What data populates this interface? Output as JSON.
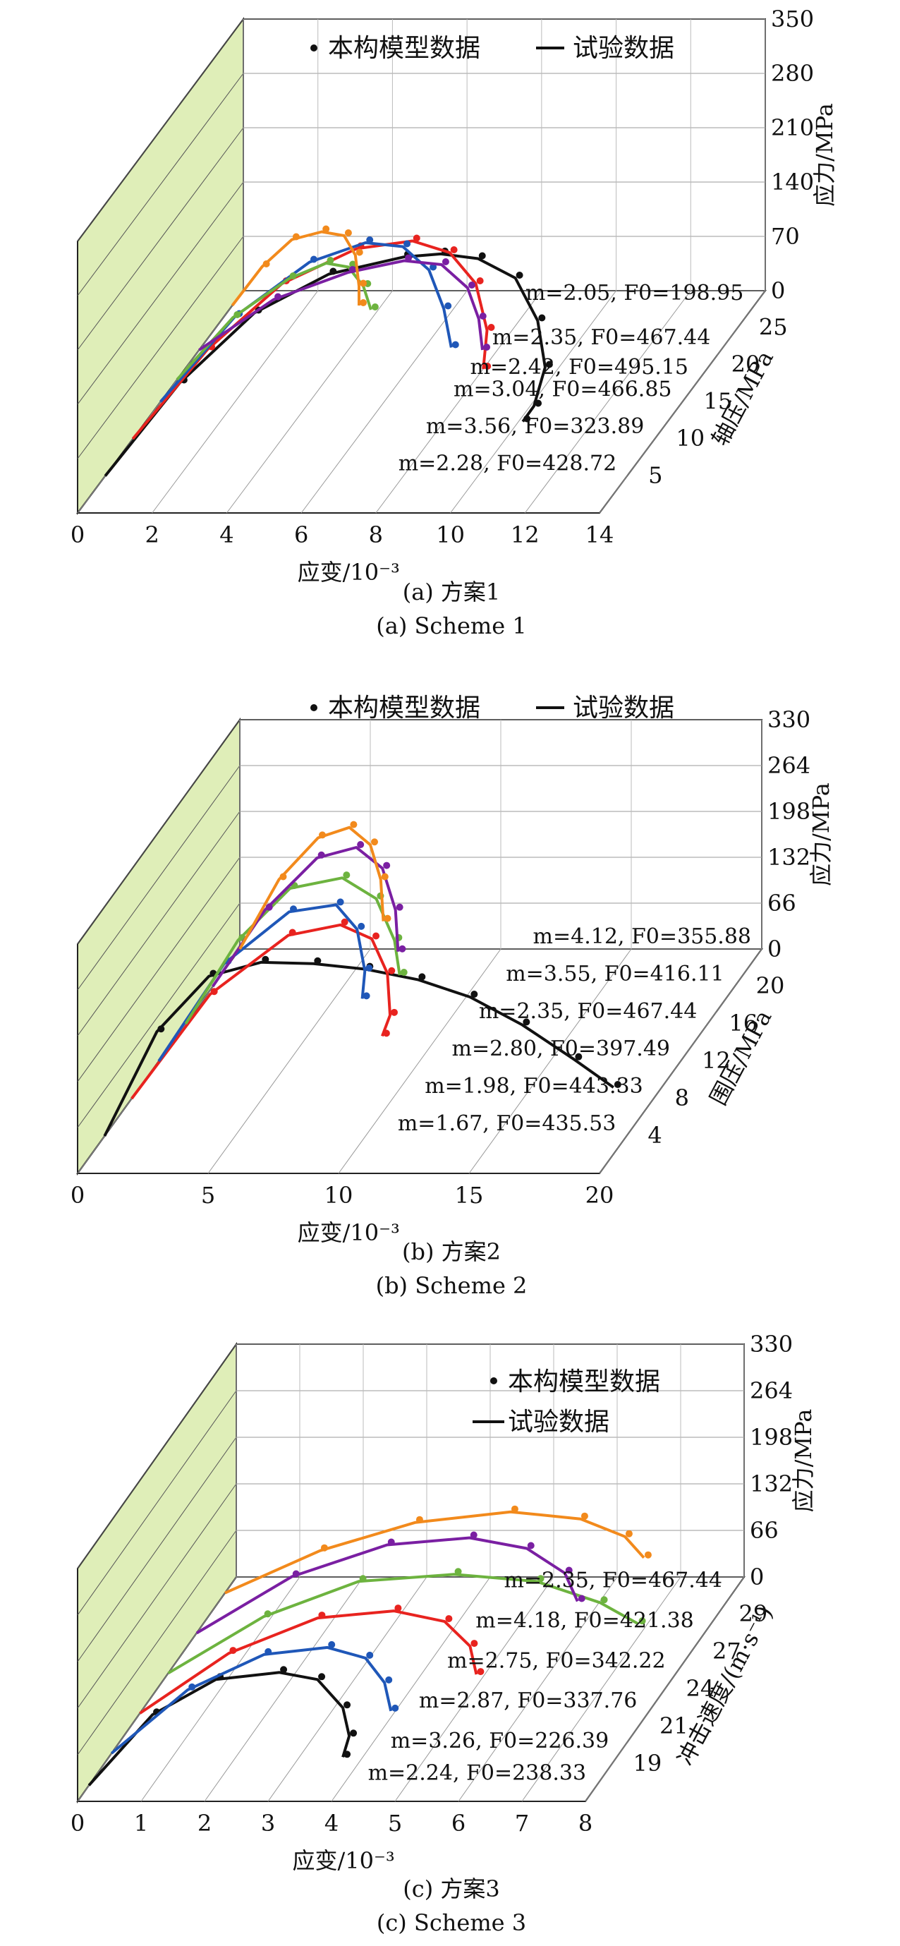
{
  "panels": [
    {
      "caption_cn": "(a) 方案1",
      "caption_en": "(a) Scheme 1",
      "legend": {
        "model": "本构模型数据",
        "test": "试验数据"
      },
      "chart_data": {
        "type": "line",
        "title": "",
        "xlabel": "应变/10⁻³",
        "ylabel": "轴压/MPa",
        "zlabel": "应力/MPa",
        "x_ticks": [
          "0",
          "2",
          "4",
          "6",
          "8",
          "10",
          "12",
          "14"
        ],
        "y_ticks": [
          "5",
          "10",
          "15",
          "20",
          "25"
        ],
        "z_ticks": [
          "0",
          "70",
          "140",
          "210",
          "280",
          "350"
        ],
        "xlim": [
          0,
          14
        ],
        "ylim": [
          0,
          30
        ],
        "zlim": [
          0,
          350
        ],
        "series": [
          {
            "label": "m=2.28, F0=428.72",
            "color": "#111111",
            "depth": 5,
            "strain": [
              0,
              2,
              4,
              6,
              8,
              9,
              10,
              11,
              11.6,
              11.8,
              11.5,
              11.2
            ],
            "stress": [
              0,
              120,
              210,
              260,
              282,
              286,
              280,
              255,
              200,
              140,
              90,
              70
            ]
          },
          {
            "label": "m=3.56, F0=323.89",
            "color": "#e8231f",
            "depth": 10,
            "strain": [
              0,
              2,
              4,
              6,
              7.5,
              8.5,
              9.2,
              9.5,
              9.4
            ],
            "stress": [
              0,
              115,
              200,
              245,
              255,
              240,
              200,
              140,
              90
            ]
          },
          {
            "label": "m=3.04, F0=466.85",
            "color": "#1f57b8",
            "depth": 15,
            "strain": [
              0,
              2,
              4,
              5.5,
              6.5,
              7.2,
              7.6,
              7.8
            ],
            "stress": [
              0,
              110,
              180,
              205,
              200,
              170,
              120,
              70
            ]
          },
          {
            "label": "m=2.42, F0=495.15",
            "color": "#6db33f",
            "depth": 18,
            "strain": [
              0,
              1.5,
              3,
              4,
              4.6,
              5,
              5.2
            ],
            "stress": [
              0,
              80,
              130,
              150,
              145,
              120,
              90
            ]
          },
          {
            "label": "m=2.35, F0=467.44",
            "color": "#7a1fa2",
            "depth": 22,
            "strain": [
              0,
              2,
              4,
              5.5,
              6.5,
              7.2,
              7.5,
              7.6
            ],
            "stress": [
              0,
              65,
              100,
              115,
              110,
              80,
              40,
              0
            ]
          },
          {
            "label": "m=2.05, F0=198.95",
            "color": "#f28a1c",
            "depth": 28,
            "strain": [
              0,
              0.8,
              1.6,
              2.4,
              3,
              3.3,
              3.4,
              3.4
            ],
            "stress": [
              0,
              50,
              85,
              95,
              90,
              65,
              25,
              0
            ]
          }
        ]
      }
    },
    {
      "caption_cn": "(b) 方案2",
      "caption_en": "(b) Scheme 2",
      "legend": {
        "model": "本构模型数据",
        "test": "试验数据"
      },
      "chart_data": {
        "type": "line",
        "title": "",
        "xlabel": "应变/10⁻³",
        "ylabel": "围压/MPa",
        "zlabel": "应力/MPa",
        "x_ticks": [
          "0",
          "5",
          "10",
          "15",
          "20"
        ],
        "y_ticks": [
          "4",
          "8",
          "12",
          "16",
          "20"
        ],
        "z_ticks": [
          "0",
          "66",
          "132",
          "198",
          "264",
          "330"
        ],
        "xlim": [
          0,
          20
        ],
        "ylim": [
          0,
          24
        ],
        "zlim": [
          0,
          330
        ],
        "series": [
          {
            "label": "m=1.67, F0=435.53",
            "color": "#111111",
            "depth": 4,
            "strain": [
              0,
              2,
              4,
              6,
              8,
              10,
              12,
              14,
              16,
              18,
              19.5
            ],
            "stress": [
              0,
              150,
              230,
              250,
              248,
              240,
              225,
              200,
              160,
              110,
              70
            ]
          },
          {
            "label": "m=1.98, F0=443.33",
            "color": "#e8231f",
            "depth": 8,
            "strain": [
              0,
              3,
              6,
              8,
              9.2,
              9.8,
              9.9,
              9.6
            ],
            "stress": [
              0,
              150,
              235,
              250,
              230,
              180,
              120,
              90
            ]
          },
          {
            "label": "m=2.80, F0=397.49",
            "color": "#1f57b8",
            "depth": 12,
            "strain": [
              0,
              2.5,
              5,
              6.8,
              7.6,
              7.9,
              7.8
            ],
            "stress": [
              0,
              140,
              215,
              225,
              190,
              130,
              90
            ]
          },
          {
            "label": "m=2.35, F0=467.44",
            "color": "#6db33f",
            "depth": 16,
            "strain": [
              0,
              2,
              4,
              6,
              7.3,
              8,
              8.2
            ],
            "stress": [
              0,
              120,
              195,
              210,
              180,
              120,
              70
            ]
          },
          {
            "label": "m=3.55, F0=416.11",
            "color": "#7a1fa2",
            "depth": 20,
            "strain": [
              0,
              2,
              4,
              5.5,
              6.5,
              7,
              7.1
            ],
            "stress": [
              0,
              110,
              185,
              200,
              170,
              110,
              50
            ]
          },
          {
            "label": "m=4.12, F0=355.88",
            "color": "#f28a1c",
            "depth": 24,
            "strain": [
              0,
              1.5,
              3,
              4.2,
              5,
              5.4,
              5.5
            ],
            "stress": [
              0,
              100,
              160,
              175,
              150,
              100,
              40
            ]
          }
        ]
      }
    },
    {
      "caption_cn": "(c) 方案3",
      "caption_en": "(c) Scheme 3",
      "legend": {
        "model": "本构模型数据",
        "test": "试验数据"
      },
      "chart_data": {
        "type": "line",
        "title": "",
        "xlabel": "应变/10⁻³",
        "ylabel": "冲击速度/(m·s⁻¹)",
        "zlabel": "应力/MPa",
        "x_ticks": [
          "0",
          "1",
          "2",
          "3",
          "4",
          "5",
          "6",
          "7",
          "8"
        ],
        "y_ticks": [
          "19",
          "21",
          "24",
          "27",
          "29"
        ],
        "z_ticks": [
          "0",
          "66",
          "132",
          "198",
          "264",
          "330"
        ],
        "xlim": [
          0,
          8
        ],
        "ylim": [
          17,
          31
        ],
        "zlim": [
          0,
          330
        ],
        "series": [
          {
            "label": "m=2.24, F0=238.33",
            "color": "#111111",
            "depth": 18,
            "strain": [
              0,
              1,
              2,
              3,
              3.6,
              4,
              4.1,
              4
            ],
            "stress": [
              0,
              100,
              150,
              160,
              150,
              110,
              70,
              40
            ]
          },
          {
            "label": "m=3.26, F0=226.39",
            "color": "#1f57b8",
            "depth": 20,
            "strain": [
              0,
              1.2,
              2.4,
              3.4,
              4,
              4.3,
              4.4
            ],
            "stress": [
              0,
              90,
              140,
              150,
              135,
              100,
              60
            ]
          },
          {
            "label": "m=2.87, F0=337.76",
            "color": "#e8231f",
            "depth": 22.5,
            "strain": [
              0,
              1.4,
              2.8,
              4,
              4.8,
              5.2,
              5.3
            ],
            "stress": [
              0,
              85,
              135,
              145,
              130,
              95,
              55
            ]
          },
          {
            "label": "m=2.75, F0=342.22",
            "color": "#6db33f",
            "depth": 25,
            "strain": [
              0,
              1.5,
              3,
              4.5,
              5.8,
              6.8,
              7.4
            ],
            "stress": [
              0,
              80,
              130,
              140,
              130,
              100,
              70
            ]
          },
          {
            "label": "m=4.18, F0=421.38",
            "color": "#7a1fa2",
            "depth": 27.5,
            "strain": [
              0,
              1.5,
              3,
              4.3,
              5.2,
              5.8,
              6
            ],
            "stress": [
              0,
              80,
              125,
              135,
              120,
              85,
              45
            ]
          },
          {
            "label": "m=2.35, F0=467.44",
            "color": "#f28a1c",
            "depth": 30,
            "strain": [
              0,
              1.5,
              3,
              4.5,
              5.6,
              6.3,
              6.6
            ],
            "stress": [
              0,
              60,
              100,
              115,
              105,
              80,
              50
            ]
          }
        ]
      }
    }
  ]
}
